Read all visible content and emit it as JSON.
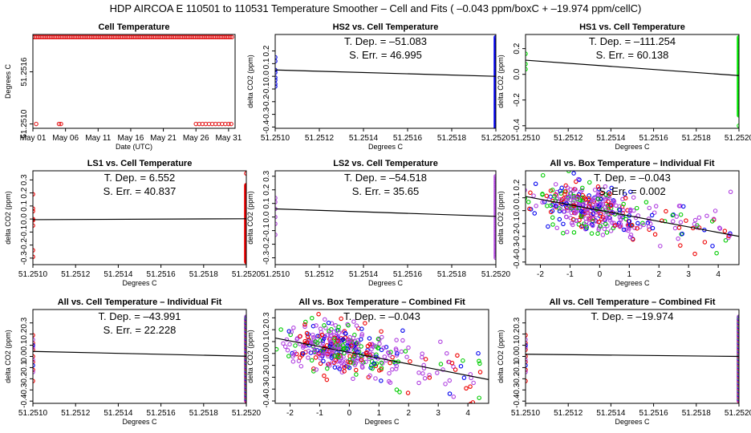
{
  "figure": {
    "title": "HDP   AIRCOA E   110501 to 110531   Temperature Smoother – Cell and Fits ( –0.043  ppm/boxC +  –19.974  ppm/cellC)"
  },
  "chart_data": [
    {
      "id": "p1",
      "type": "scatter",
      "title": "Cell Temperature",
      "xlabel": "Date (UTC)",
      "ylabel": "Degrees C",
      "xlim": [
        0,
        31
      ],
      "ylim": [
        51.25095,
        51.25203
      ],
      "xticks": [
        0,
        5,
        10,
        15,
        20,
        25,
        30
      ],
      "xticklabels": [
        "May 01",
        "May 06",
        "May 11",
        "May 16",
        "May 21",
        "May 26",
        "May 31"
      ],
      "yticks": [
        51.251,
        51.2516
      ],
      "yticklabels": [
        "51.2510",
        "51.2516"
      ],
      "series": [
        {
          "name": "cell",
          "color": "#e31a1c",
          "kind": "band",
          "x_from": 0,
          "x_to": 30.6,
          "y": 51.252,
          "step": 0.28
        },
        {
          "name": "cell",
          "color": "#e31a1c",
          "x": [
            0.5,
            4.0,
            4.3,
            25.0,
            25.5,
            26.0,
            26.5,
            27.0,
            27.5,
            28.0,
            28.5,
            29.0,
            29.5,
            30.0,
            30.4
          ],
          "y": [
            51.251,
            51.251,
            51.251,
            51.251,
            51.251,
            51.251,
            51.251,
            51.251,
            51.251,
            51.251,
            51.251,
            51.251,
            51.251,
            51.251,
            51.251
          ]
        }
      ]
    },
    {
      "id": "p2",
      "type": "scatter",
      "title": "HS2 vs. Cell Temperature",
      "xlabel": "Degrees C",
      "ylabel": "delta CO2 (ppm)",
      "xlim": [
        51.251,
        51.252
      ],
      "ylim": [
        -0.41,
        0.33
      ],
      "xticks": [
        51.251,
        51.2512,
        51.2514,
        51.2516,
        51.2518,
        51.252
      ],
      "xticklabels": [
        "51.2510",
        "51.2512",
        "51.2514",
        "51.2516",
        "51.2518",
        "51.2520"
      ],
      "yticks": [
        -0.4,
        -0.3,
        -0.2,
        -0.1,
        0.0,
        0.1,
        0.2
      ],
      "yticklabels": [
        "-0.4",
        "-0.3",
        "-0.2",
        "-0.1",
        "0.0",
        "0.1",
        "0.2"
      ],
      "stats": [
        "T. Dep. =  –51.083",
        "S. Err. =  46.995"
      ],
      "fit": {
        "x": [
          51.251,
          51.252
        ],
        "y": [
          0.05,
          0.0
        ]
      },
      "series": [
        {
          "name": "HS2",
          "color": "#0000ee",
          "x": [
            51.251,
            51.251,
            51.251,
            51.251,
            51.251,
            51.251,
            51.251,
            51.251
          ],
          "y": [
            0.15,
            0.12,
            0.05,
            0.03,
            -0.01,
            -0.03,
            -0.06,
            -0.08
          ]
        },
        {
          "name": "HS2",
          "color": "#0000ee",
          "kind": "column",
          "x": 51.252,
          "y_from": -0.42,
          "y_to": 0.31,
          "step": 0.008
        }
      ]
    },
    {
      "id": "p3",
      "type": "scatter",
      "title": "HS1 vs. Cell Temperature",
      "xlabel": "Degrees C",
      "ylabel": "delta CO2 (ppm)",
      "xlim": [
        51.251,
        51.252
      ],
      "ylim": [
        -0.42,
        0.31
      ],
      "xticks": [
        51.251,
        51.2512,
        51.2514,
        51.2516,
        51.2518,
        51.252
      ],
      "xticklabels": [
        "51.2510",
        "51.2512",
        "51.2514",
        "51.2516",
        "51.2518",
        "51.2520"
      ],
      "yticks": [
        -0.4,
        -0.2,
        0.0,
        0.2
      ],
      "yticklabels": [
        "-0.4",
        "-0.2",
        "0.0",
        "0.2"
      ],
      "stats": [
        "T. Dep. =  –111.254",
        "S. Err. =  60.138"
      ],
      "fit": {
        "x": [
          51.251,
          51.252
        ],
        "y": [
          0.11,
          -0.01
        ]
      },
      "series": [
        {
          "name": "HS1",
          "color": "#00ee00",
          "x": [
            51.251,
            51.251,
            51.251
          ],
          "y": [
            0.16,
            0.08,
            0.04
          ]
        },
        {
          "name": "HS1",
          "color": "#00ee00",
          "kind": "column",
          "x": 51.252,
          "y_from": -0.32,
          "y_to": 0.29,
          "step": 0.008
        },
        {
          "name": "HS1",
          "color": "#00ee00",
          "x": [
            51.252
          ],
          "y": [
            -0.4
          ]
        }
      ]
    },
    {
      "id": "p4",
      "type": "scatter",
      "title": "LS1 vs. Cell Temperature",
      "xlabel": "Degrees C",
      "ylabel": "delta CO2 (ppm)",
      "xlim": [
        51.251,
        51.252
      ],
      "ylim": [
        -0.35,
        0.37
      ],
      "xticks": [
        51.251,
        51.2512,
        51.2514,
        51.2516,
        51.2518,
        51.252
      ],
      "xticklabels": [
        "51.2510",
        "51.2512",
        "51.2514",
        "51.2516",
        "51.2518",
        "51.2520"
      ],
      "yticks": [
        -0.3,
        -0.2,
        -0.1,
        0.0,
        0.1,
        0.2,
        0.3
      ],
      "yticklabels": [
        "-0.3",
        "-0.2",
        "-0.1",
        "0.0",
        "0.1",
        "0.2",
        "0.3"
      ],
      "stats": [
        "T. Dep. =  6.552",
        "S. Err. =  40.837"
      ],
      "fit": {
        "x": [
          51.251,
          51.252
        ],
        "y": [
          -0.005,
          0.002
        ]
      },
      "series": [
        {
          "name": "LS1",
          "color": "#ee0000",
          "x": [
            51.251,
            51.251,
            51.251,
            51.251,
            51.251,
            51.251,
            51.251,
            51.251
          ],
          "y": [
            0.19,
            0.08,
            0.06,
            0.0,
            -0.01,
            -0.05,
            -0.24,
            -0.29
          ]
        },
        {
          "name": "LS1",
          "color": "#ee0000",
          "kind": "column",
          "x": 51.252,
          "y_from": -0.33,
          "y_to": 0.26,
          "step": 0.005
        },
        {
          "name": "LS1",
          "color": "#ee0000",
          "x": [
            51.252
          ],
          "y": [
            0.35
          ]
        }
      ]
    },
    {
      "id": "p5",
      "type": "scatter",
      "title": "LS2 vs. Cell Temperature",
      "xlabel": "Degrees C",
      "ylabel": "delta CO2 (ppm)",
      "xlim": [
        51.251,
        51.252
      ],
      "ylim": [
        -0.35,
        0.34
      ],
      "xticks": [
        51.251,
        51.2512,
        51.2514,
        51.2516,
        51.2518,
        51.252
      ],
      "xticklabels": [
        "51.2510",
        "51.2512",
        "51.2514",
        "51.2516",
        "51.2518",
        "51.2520"
      ],
      "yticks": [
        -0.3,
        -0.2,
        -0.1,
        0.0,
        0.1,
        0.2,
        0.3
      ],
      "yticklabels": [
        "-0.3",
        "-0.2",
        "-0.1",
        "0.0",
        "0.1",
        "0.2",
        "0.3"
      ],
      "stats": [
        "T. Dep. =  –54.518",
        "S. Err. =  35.65"
      ],
      "fit": {
        "x": [
          51.251,
          51.252
        ],
        "y": [
          0.06,
          0.005
        ]
      },
      "series": [
        {
          "name": "LS2",
          "color": "#b040e0",
          "x": [
            51.251,
            51.251,
            51.251,
            51.251,
            51.251,
            51.251
          ],
          "y": [
            0.14,
            0.11,
            0.06,
            0.0,
            -0.05,
            -0.13
          ]
        },
        {
          "name": "LS2",
          "color": "#b040e0",
          "kind": "column",
          "x": 51.252,
          "y_from": -0.3,
          "y_to": 0.3,
          "step": 0.01
        }
      ]
    },
    {
      "id": "p6",
      "type": "scatter",
      "title": "All vs. Box Temperature – Individual Fit",
      "xlabel": "Degrees C",
      "ylabel": "delta CO2 (ppm)",
      "xlim": [
        -2.5,
        4.7
      ],
      "ylim": [
        -0.42,
        0.31
      ],
      "xticks": [
        -2,
        -1,
        0,
        1,
        2,
        3,
        4
      ],
      "xticklabels": [
        "-2",
        "-1",
        "0",
        "1",
        "2",
        "3",
        "4"
      ],
      "yticks": [
        -0.4,
        -0.3,
        -0.2,
        -0.1,
        0.0,
        0.1,
        0.2
      ],
      "yticklabels": [
        "-0.4",
        "-0.3",
        "-0.2",
        "-0.1",
        "0.0",
        "0.1",
        "0.2"
      ],
      "stats": [
        "T. Dep. =  –0.043",
        "S. Err. =  0.002"
      ],
      "fit": {
        "x": [
          -2.5,
          4.7
        ],
        "y": [
          0.11,
          -0.2
        ]
      },
      "series": [
        {
          "name": "cloud",
          "kind": "cloud",
          "seed": 11,
          "n": 460,
          "slope": -0.043,
          "intercept": 0.0,
          "sx": 0.9,
          "sy": 0.09,
          "mx": -0.3,
          "colors": [
            "#b040e0",
            "#b040e0",
            "#b040e0",
            "#ee0000",
            "#00cc00",
            "#0000ee"
          ]
        }
      ]
    },
    {
      "id": "p7",
      "type": "scatter",
      "title": "All vs. Cell Temperature – Individual Fit",
      "xlabel": "Degrees C",
      "ylabel": "delta CO2 (ppm)",
      "xlim": [
        51.251,
        51.252
      ],
      "ylim": [
        -0.42,
        0.42
      ],
      "xticks": [
        51.251,
        51.2512,
        51.2514,
        51.2516,
        51.2518,
        51.252
      ],
      "xticklabels": [
        "51.2510",
        "51.2512",
        "51.2514",
        "51.2516",
        "51.2518",
        "51.2520"
      ],
      "yticks": [
        -0.4,
        -0.3,
        -0.2,
        -0.1,
        0.0,
        0.1,
        0.2,
        0.3
      ],
      "yticklabels": [
        "-0.4",
        "-0.3",
        "-0.2",
        "-0.1",
        "0.0",
        "0.1",
        "0.2",
        "0.3"
      ],
      "stats": [
        "T. Dep. =  –43.991",
        "S. Err. =  22.228"
      ],
      "fit": {
        "x": [
          51.251,
          51.252
        ],
        "y": [
          0.045,
          0.002
        ]
      },
      "series": [
        {
          "name": "all",
          "color": "#ee0000",
          "x": [
            51.251,
            51.251,
            51.251,
            51.251,
            51.251,
            51.251,
            51.251
          ],
          "y": [
            0.19,
            0.12,
            0.06,
            0.0,
            -0.05,
            -0.12,
            -0.22
          ]
        },
        {
          "name": "all",
          "color": "#b040e0",
          "x": [
            51.251,
            51.251,
            51.251,
            51.251
          ],
          "y": [
            0.15,
            0.08,
            -0.03,
            -0.14
          ]
        },
        {
          "name": "all",
          "color": "#0000ee",
          "x": [
            51.251,
            51.251
          ],
          "y": [
            0.1,
            -0.08
          ]
        },
        {
          "name": "all",
          "kind": "column",
          "x": 51.252,
          "y_from": -0.4,
          "y_to": 0.36,
          "step": 0.006,
          "colors": [
            "#b040e0",
            "#ee0000",
            "#b040e0",
            "#0000ee",
            "#b040e0",
            "#00cc00"
          ]
        }
      ]
    },
    {
      "id": "p8",
      "type": "scatter",
      "title": "All vs. Box Temperature – Combined Fit",
      "xlabel": "Degrees C",
      "ylabel": "delta CO2 (ppm)",
      "xlim": [
        -2.5,
        4.7
      ],
      "ylim": [
        -0.42,
        0.37
      ],
      "xticks": [
        -2,
        -1,
        0,
        1,
        2,
        3,
        4
      ],
      "xticklabels": [
        "-2",
        "-1",
        "0",
        "1",
        "2",
        "3",
        "4"
      ],
      "yticks": [
        -0.4,
        -0.3,
        -0.2,
        -0.1,
        0.0,
        0.1,
        0.2,
        0.3
      ],
      "yticklabels": [
        "-0.4",
        "-0.3",
        "-0.2",
        "-0.1",
        "0.0",
        "0.1",
        "0.2",
        "0.3"
      ],
      "stats": [
        "T. Dep. =  –0.043"
      ],
      "fit": {
        "x": [
          -2.5,
          4.7
        ],
        "y": [
          0.13,
          -0.22
        ]
      },
      "series": [
        {
          "name": "cloud",
          "kind": "cloud",
          "seed": 29,
          "n": 460,
          "slope": -0.045,
          "intercept": 0.02,
          "sx": 0.9,
          "sy": 0.1,
          "mx": -0.3,
          "colors": [
            "#b040e0",
            "#b040e0",
            "#b040e0",
            "#ee0000",
            "#00cc00",
            "#0000ee"
          ]
        }
      ]
    },
    {
      "id": "p9",
      "type": "scatter",
      "title": "All vs. Cell Temperature – Combined Fit",
      "xlabel": "Degrees C",
      "ylabel": "delta CO2 (ppm)",
      "xlim": [
        51.251,
        51.252
      ],
      "ylim": [
        -0.42,
        0.42
      ],
      "xticks": [
        51.251,
        51.2512,
        51.2514,
        51.2516,
        51.2518,
        51.252
      ],
      "xticklabels": [
        "51.2510",
        "51.2512",
        "51.2514",
        "51.2516",
        "51.2518",
        "51.2520"
      ],
      "yticks": [
        -0.4,
        -0.3,
        -0.2,
        -0.1,
        0.0,
        0.1,
        0.2,
        0.3
      ],
      "yticklabels": [
        "-0.4",
        "-0.3",
        "-0.2",
        "-0.1",
        "0.0",
        "0.1",
        "0.2",
        "0.3"
      ],
      "stats": [
        "T. Dep. =  –19.974"
      ],
      "fit": {
        "x": [
          51.251,
          51.252
        ],
        "y": [
          0.02,
          0.0
        ]
      },
      "series": [
        {
          "name": "all",
          "color": "#ee0000",
          "x": [
            51.251,
            51.251,
            51.251,
            51.251,
            51.251,
            51.251,
            51.251
          ],
          "y": [
            0.19,
            0.12,
            0.06,
            0.0,
            -0.05,
            -0.12,
            -0.22
          ]
        },
        {
          "name": "all",
          "color": "#b040e0",
          "x": [
            51.251,
            51.251,
            51.251,
            51.251
          ],
          "y": [
            0.15,
            0.08,
            -0.03,
            -0.14
          ]
        },
        {
          "name": "all",
          "color": "#0000ee",
          "x": [
            51.251,
            51.251
          ],
          "y": [
            0.1,
            -0.08
          ]
        },
        {
          "name": "all",
          "kind": "column",
          "x": 51.252,
          "y_from": -0.4,
          "y_to": 0.36,
          "step": 0.006,
          "colors": [
            "#b040e0",
            "#ee0000",
            "#b040e0",
            "#0000ee",
            "#b040e0",
            "#00cc00"
          ]
        }
      ]
    }
  ]
}
